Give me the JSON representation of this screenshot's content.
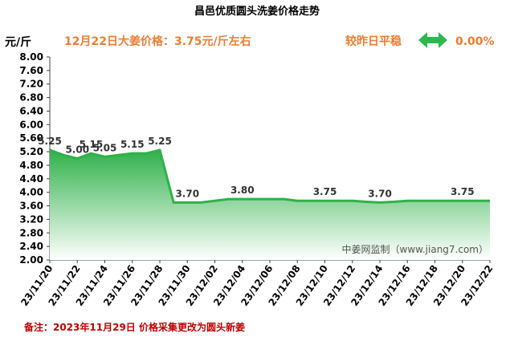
{
  "title": "昌邑优质圆头洗姜价格走势",
  "y_unit": "元/斤",
  "headline": "12月22日大姜价格：3.75元/斤左右",
  "comparison_label": "较昨日平稳",
  "comparison_value": "0.00%",
  "watermark": "中姜网监制（www.jiang7.com）",
  "footnote": "备注：2023年11月29日 价格采集更改为圆头新姜",
  "colors": {
    "title": "#000000",
    "headline": "#ed7d31",
    "comparison_value": "#ed7d31",
    "comparison_arrow": "#2db84e",
    "line": "#2fb14a",
    "fill_top": "#2fb14a",
    "fill_bottom": "#ffffff",
    "footnote": "#c00000"
  },
  "icons": {
    "comparison": "left-right-arrow-icon"
  },
  "chart_data": {
    "type": "area",
    "title": "昌邑优质圆头洗姜价格走势",
    "ylabel": "元/斤",
    "xlabel": "",
    "ylim": [
      2.0,
      8.0
    ],
    "yticks": [
      "8.00",
      "7.60",
      "7.20",
      "6.80",
      "6.40",
      "6.00",
      "5.60",
      "5.20",
      "4.80",
      "4.40",
      "4.00",
      "3.60",
      "3.20",
      "2.80",
      "2.40",
      "2.00"
    ],
    "xticks": [
      "23/11/20",
      "23/11/22",
      "23/11/24",
      "23/11/26",
      "23/11/28",
      "23/11/30",
      "23/12/02",
      "23/12/04",
      "23/12/06",
      "23/12/08",
      "23/12/10",
      "23/12/12",
      "23/12/14",
      "23/12/16",
      "23/12/18",
      "23/12/20",
      "23/12/22"
    ],
    "x": [
      "23/11/20",
      "23/11/21",
      "23/11/22",
      "23/11/23",
      "23/11/24",
      "23/11/25",
      "23/11/26",
      "23/11/27",
      "23/11/28",
      "23/11/29",
      "23/11/30",
      "23/12/01",
      "23/12/02",
      "23/12/03",
      "23/12/04",
      "23/12/05",
      "23/12/06",
      "23/12/07",
      "23/12/08",
      "23/12/09",
      "23/12/10",
      "23/12/11",
      "23/12/12",
      "23/12/13",
      "23/12/14",
      "23/12/15",
      "23/12/16",
      "23/12/17",
      "23/12/18",
      "23/12/19",
      "23/12/20",
      "23/12/21",
      "23/12/22"
    ],
    "values": [
      5.25,
      5.1,
      5.0,
      5.15,
      5.05,
      5.1,
      5.15,
      5.15,
      5.25,
      3.7,
      3.7,
      3.7,
      3.75,
      3.8,
      3.8,
      3.8,
      3.8,
      3.8,
      3.75,
      3.75,
      3.75,
      3.75,
      3.75,
      3.72,
      3.7,
      3.72,
      3.75,
      3.75,
      3.75,
      3.75,
      3.75,
      3.75,
      3.75
    ],
    "data_labels": [
      {
        "x": "23/11/20",
        "text": "5.25"
      },
      {
        "x": "23/11/22",
        "text": "5.00"
      },
      {
        "x": "23/11/23",
        "text": "5.15"
      },
      {
        "x": "23/11/24",
        "text": "5.05"
      },
      {
        "x": "23/11/26",
        "text": "5.15"
      },
      {
        "x": "23/11/28",
        "text": "5.25"
      },
      {
        "x": "23/11/30",
        "text": "3.70"
      },
      {
        "x": "23/12/04",
        "text": "3.80"
      },
      {
        "x": "23/12/10",
        "text": "3.75"
      },
      {
        "x": "23/12/14",
        "text": "3.70"
      },
      {
        "x": "23/12/20",
        "text": "3.75"
      }
    ],
    "grid": false
  }
}
